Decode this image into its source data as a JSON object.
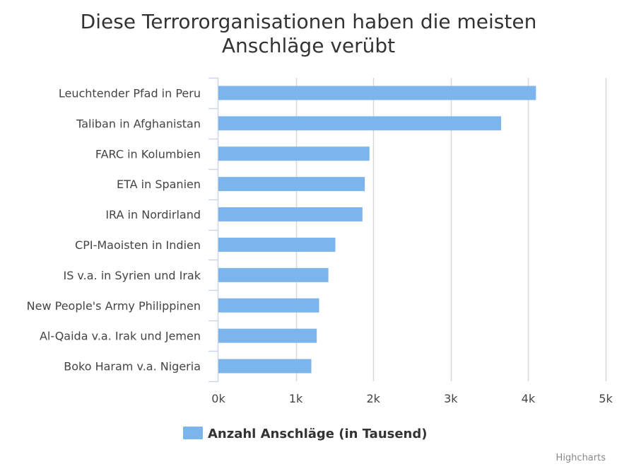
{
  "chart_data": {
    "type": "bar",
    "orientation": "horizontal",
    "title": [
      "Diese Terrororganisationen haben die meisten",
      "Anschläge verübt"
    ],
    "categories": [
      "Leuchtender Pfad in Peru",
      "Taliban in Afghanistan",
      "FARC in Kolumbien",
      "ETA in Spanien",
      "IRA in Nordirland",
      "CPI-Maoisten in Indien",
      "IS v.a. in Syrien und Irak",
      "New People's Army Philippinen",
      "Al-Qaida v.a. Irak und Jemen",
      "Boko Haram v.a. Nigeria"
    ],
    "series": [
      {
        "name": "Anzahl Anschläge (in Tausend)",
        "values": [
          4100,
          3650,
          1950,
          1890,
          1860,
          1510,
          1420,
          1300,
          1270,
          1200
        ],
        "color": "#7cb5ec"
      }
    ],
    "xlim": [
      0,
      5000
    ],
    "ticks": [
      0,
      1000,
      2000,
      3000,
      4000,
      5000
    ],
    "tick_labels": [
      "0k",
      "1k",
      "2k",
      "3k",
      "4k",
      "5k"
    ],
    "grid": true,
    "grid_color": "#d8d8d8",
    "axis_color": "#ccd6eb",
    "legend_position": "bottom-center",
    "credits": "Highcharts"
  }
}
